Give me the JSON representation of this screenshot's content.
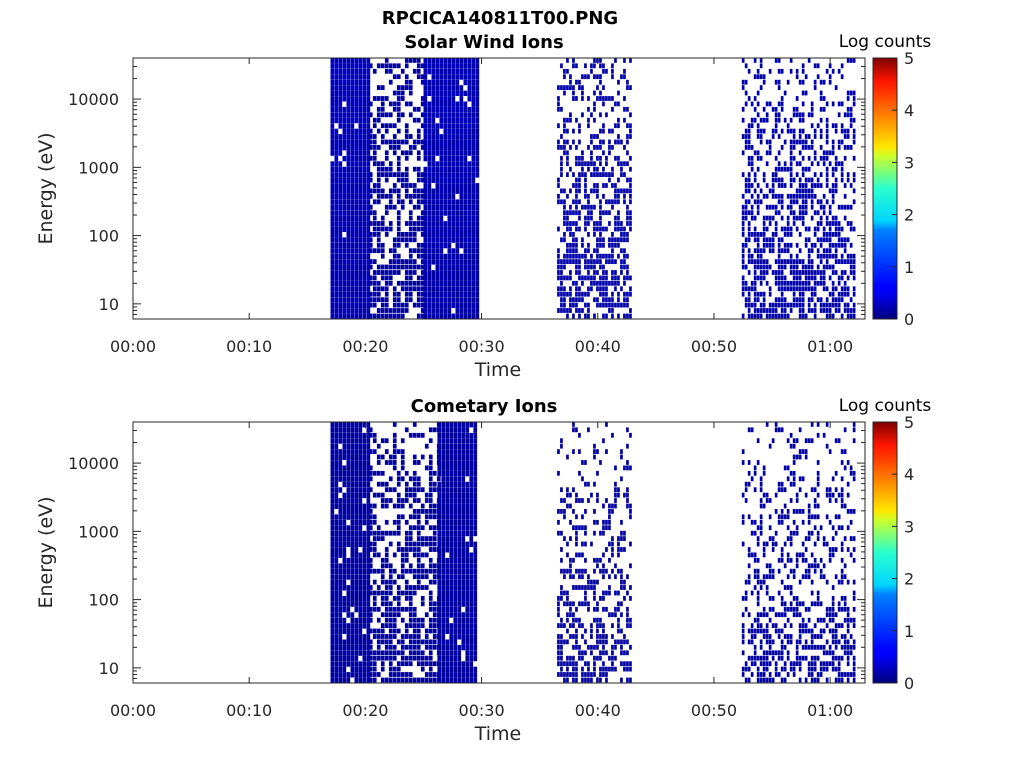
{
  "figure": {
    "title": "RPCICA140811T00.PNG"
  },
  "chart_data": [
    {
      "type": "heatmap",
      "title": "Solar Wind Ions",
      "xlabel": "Time",
      "ylabel": "Energy (eV)",
      "x_ticks": [
        "00:00",
        "00:10",
        "00:20",
        "00:30",
        "00:40",
        "00:50",
        "01:00"
      ],
      "xlim_minutes": [
        0,
        63
      ],
      "y_scale": "log",
      "y_ticks": [
        "10",
        "100",
        "1000",
        "10000"
      ],
      "ylim": [
        6,
        40000
      ],
      "colorbar": {
        "label": "Log counts",
        "range": [
          0,
          5
        ],
        "ticks": [
          "0",
          "1",
          "2",
          "3",
          "4",
          "5"
        ],
        "colormap": "jet"
      },
      "background": "#ffffff",
      "data_segments": [
        {
          "start_min": 17.0,
          "end_min": 20.3,
          "fill": "dense",
          "level": 0.5
        },
        {
          "start_min": 20.3,
          "end_min": 25.0,
          "fill": "sparse",
          "level": 0.2
        },
        {
          "start_min": 25.0,
          "end_min": 29.6,
          "fill": "dense",
          "level": 0.15
        },
        {
          "start_min": 36.5,
          "end_min": 42.8,
          "fill": "speckle",
          "level": 0.3
        },
        {
          "start_min": 52.4,
          "end_min": 62.0,
          "fill": "speckle",
          "level": 0.3
        }
      ]
    },
    {
      "type": "heatmap",
      "title": "Cometary Ions",
      "xlabel": "Time",
      "ylabel": "Energy (eV)",
      "x_ticks": [
        "00:00",
        "00:10",
        "00:20",
        "00:30",
        "00:40",
        "00:50",
        "01:00"
      ],
      "xlim_minutes": [
        0,
        63
      ],
      "y_scale": "log",
      "y_ticks": [
        "10",
        "100",
        "1000",
        "10000"
      ],
      "ylim": [
        6,
        40000
      ],
      "colorbar": {
        "label": "Log counts",
        "range": [
          0,
          5
        ],
        "ticks": [
          "0",
          "1",
          "2",
          "3",
          "4",
          "5"
        ],
        "colormap": "jet"
      },
      "background": "#ffffff",
      "data_segments": [
        {
          "start_min": 17.0,
          "end_min": 20.3,
          "fill": "dense",
          "level": 0.2
        },
        {
          "start_min": 20.3,
          "end_min": 26.2,
          "fill": "sparse",
          "level": 0.15
        },
        {
          "start_min": 26.2,
          "end_min": 29.6,
          "fill": "dense",
          "level": 0.05
        },
        {
          "start_min": 36.5,
          "end_min": 42.8,
          "fill": "speckle",
          "level": 0.1
        },
        {
          "start_min": 52.4,
          "end_min": 62.0,
          "fill": "speckle",
          "level": 0.1
        }
      ]
    }
  ]
}
